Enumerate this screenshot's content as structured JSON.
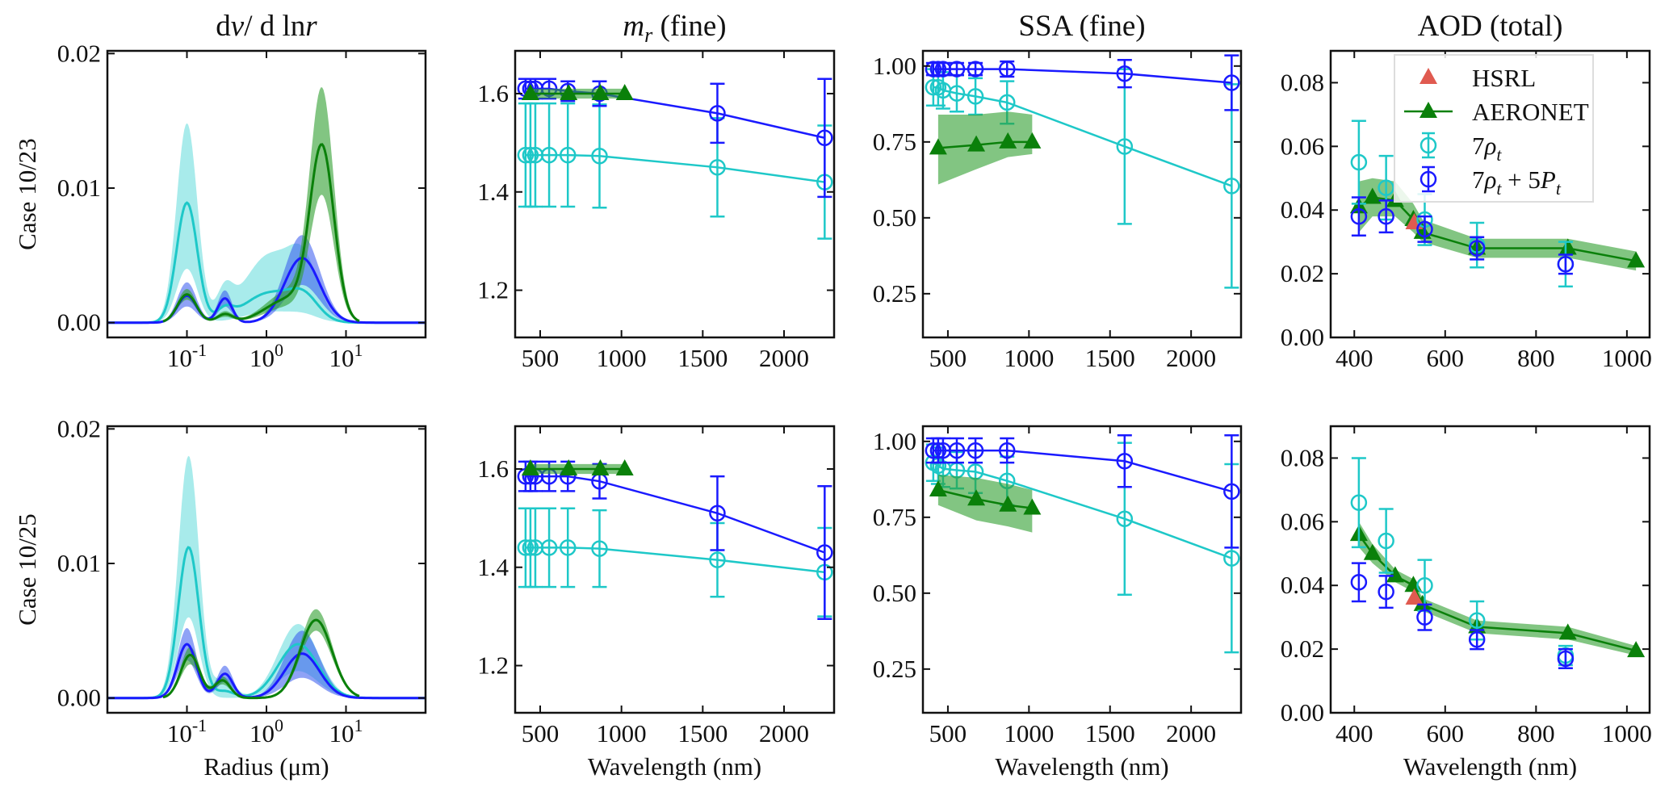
{
  "colors": {
    "fit7": "#1ec8c8",
    "fit7band": "#3fd3d3",
    "fit12": "#1a1aff",
    "fit12band": "#3355ee",
    "aeronet": "#0a800a",
    "aeronetband": "#2e9e2e",
    "hsrl": "#e05a50",
    "axis": "#111111"
  },
  "legend": [
    {
      "key": "hsrl",
      "parts": [
        [
          "HSRL",
          ""
        ]
      ]
    },
    {
      "key": "aeronet",
      "parts": [
        [
          "AERONET",
          ""
        ]
      ]
    },
    {
      "key": "fit7",
      "parts": [
        [
          "7",
          ""
        ],
        [
          "ρ",
          "i"
        ],
        [
          "t",
          "sub"
        ]
      ]
    },
    {
      "key": "fit12",
      "parts": [
        [
          "7",
          ""
        ],
        [
          "ρ",
          "i"
        ],
        [
          "t",
          "sub"
        ],
        [
          " + 5",
          ""
        ],
        [
          "P",
          "i"
        ],
        [
          "t",
          "sub"
        ]
      ]
    }
  ],
  "row_labels": [
    "Case 10/23",
    "Case 10/25"
  ],
  "col_titles": [
    [
      [
        "d",
        ""
      ],
      [
        "v",
        "i"
      ],
      [
        "/ d ln",
        ""
      ],
      [
        "r",
        "i"
      ]
    ],
    [
      [
        "m",
        "i"
      ],
      [
        "r",
        "sub"
      ],
      [
        "  (fine)",
        ""
      ]
    ],
    [
      [
        "SSA (fine)",
        ""
      ]
    ],
    [
      [
        "AOD (total)",
        ""
      ]
    ]
  ],
  "xlabels": [
    "Radius (μm)",
    "Wavelength (nm)",
    "Wavelength (nm)",
    "Wavelength (nm)"
  ],
  "chart_data": [
    {
      "type": "area",
      "row": 0,
      "col": 0,
      "xscale": "log",
      "xlim": [
        0.01,
        100
      ],
      "ylim": [
        -0.0011,
        0.0202
      ],
      "xticks": [
        0.1,
        1,
        10
      ],
      "xtick_labels": [
        [
          "10",
          "-1"
        ],
        [
          "10",
          "0"
        ],
        [
          "10",
          "1"
        ]
      ],
      "yticks": [
        0,
        0.01,
        0.02
      ],
      "ytick_labels": [
        "0.00",
        "0.01",
        "0.02"
      ],
      "note": "lognormal modes: [radius_um, mean, lower, upper, width_log10]",
      "series": [
        {
          "key": "fit7",
          "range": [
            0.01,
            100
          ],
          "modes": [
            [
              0.1,
              0.0089,
              0.004,
              0.0148,
              0.13
            ],
            [
              0.3,
              0.0008,
              0,
              0.002,
              0.1
            ],
            [
              1.1,
              0.0022,
              0.0008,
              0.005,
              0.32
            ],
            [
              3,
              0.0015,
              0.0004,
              0.0035,
              0.18
            ]
          ]
        },
        {
          "key": "fit12",
          "range": [
            0.01,
            100
          ],
          "modes": [
            [
              0.1,
              0.002,
              0.0012,
              0.003,
              0.12
            ],
            [
              0.3,
              0.0018,
              0.0012,
              0.0024,
              0.09
            ],
            [
              2.8,
              0.0048,
              0.0028,
              0.0065,
              0.22
            ]
          ]
        },
        {
          "key": "aeronet",
          "range": [
            0.05,
            15
          ],
          "modes": [
            [
              0.1,
              0.0021,
              0.0017,
              0.0025,
              0.12
            ],
            [
              0.3,
              0.0006,
              0.0004,
              0.0008,
              0.1
            ],
            [
              2,
              0.0018,
              0.0012,
              0.0024,
              0.3
            ],
            [
              5,
              0.0125,
              0.009,
              0.0165,
              0.15
            ]
          ]
        }
      ]
    },
    {
      "type": "line",
      "row": 0,
      "col": 1,
      "xlim": [
        346,
        2308
      ],
      "ylim": [
        1.104,
        1.687
      ],
      "xticks": [
        500,
        1000,
        1500,
        2000
      ],
      "xtick_labels": [
        "500",
        "1000",
        "1500",
        "2000"
      ],
      "yticks": [
        1.2,
        1.4,
        1.6
      ],
      "ytick_labels": [
        "1.2",
        "1.4",
        "1.6"
      ],
      "series": [
        {
          "key": "fit7",
          "x": [
            410,
            440,
            470,
            555,
            670,
            865,
            1590,
            2250
          ],
          "y": [
            1.475,
            1.475,
            1.475,
            1.475,
            1.475,
            1.473,
            1.45,
            1.42
          ],
          "err": [
            0.105,
            0.105,
            0.105,
            0.105,
            0.105,
            0.105,
            0.1,
            0.115
          ]
        },
        {
          "key": "fit12",
          "x": [
            410,
            440,
            470,
            555,
            670,
            865,
            1590,
            2250
          ],
          "y": [
            1.61,
            1.61,
            1.61,
            1.61,
            1.605,
            1.6,
            1.56,
            1.51
          ],
          "err": [
            0.02,
            0.02,
            0.02,
            0.02,
            0.02,
            0.025,
            0.06,
            0.12
          ]
        },
        {
          "key": "aeronet",
          "x": [
            440,
            675,
            870,
            1020
          ],
          "y": [
            1.6,
            1.6,
            1.6,
            1.6
          ],
          "lo": [
            1.59,
            1.59,
            1.59,
            1.59
          ],
          "hi": [
            1.61,
            1.61,
            1.61,
            1.61
          ]
        }
      ]
    },
    {
      "type": "line",
      "row": 0,
      "col": 2,
      "xlim": [
        346,
        2308
      ],
      "ylim": [
        0.106,
        1.05
      ],
      "xticks": [
        500,
        1000,
        1500,
        2000
      ],
      "xtick_labels": [
        "500",
        "1000",
        "1500",
        "2000"
      ],
      "yticks": [
        0.25,
        0.5,
        0.75,
        1.0
      ],
      "ytick_labels": [
        "0.25",
        "0.50",
        "0.75",
        "1.00"
      ],
      "series": [
        {
          "key": "fit7",
          "x": [
            410,
            440,
            470,
            555,
            670,
            865,
            1590,
            2250
          ],
          "y": [
            0.93,
            0.93,
            0.92,
            0.91,
            0.9,
            0.88,
            0.735,
            0.605
          ],
          "err": [
            0.06,
            0.06,
            0.06,
            0.06,
            0.06,
            0.07,
            0.255,
            0.335
          ]
        },
        {
          "key": "fit12",
          "x": [
            410,
            440,
            470,
            555,
            670,
            865,
            1590,
            2250
          ],
          "y": [
            0.99,
            0.99,
            0.99,
            0.99,
            0.99,
            0.99,
            0.975,
            0.945
          ],
          "err": [
            0.02,
            0.02,
            0.02,
            0.02,
            0.02,
            0.025,
            0.045,
            0.09
          ]
        },
        {
          "key": "aeronet",
          "x": [
            440,
            675,
            870,
            1020
          ],
          "y": [
            0.73,
            0.74,
            0.75,
            0.75
          ],
          "lo": [
            0.61,
            0.66,
            0.7,
            0.71
          ],
          "hi": [
            0.84,
            0.84,
            0.85,
            0.84
          ]
        }
      ]
    },
    {
      "type": "line",
      "row": 0,
      "col": 3,
      "xlim": [
        348,
        1050
      ],
      "ylim": [
        0,
        0.09
      ],
      "xticks": [
        400,
        600,
        800,
        1000
      ],
      "xtick_labels": [
        "400",
        "600",
        "800",
        "1000"
      ],
      "yticks": [
        0,
        0.02,
        0.04,
        0.06,
        0.08
      ],
      "ytick_labels": [
        "0.00",
        "0.02",
        "0.04",
        "0.06",
        "0.08"
      ],
      "legend": "top-right",
      "series": [
        {
          "key": "aeronet",
          "x": [
            410,
            440,
            490,
            530,
            550,
            670,
            870,
            1020
          ],
          "y": [
            0.041,
            0.044,
            0.043,
            0.037,
            0.033,
            0.028,
            0.028,
            0.024
          ],
          "lo": [
            0.033,
            0.038,
            0.038,
            0.033,
            0.03,
            0.025,
            0.025,
            0.021
          ],
          "hi": [
            0.049,
            0.05,
            0.049,
            0.042,
            0.037,
            0.031,
            0.031,
            0.027
          ]
        },
        {
          "key": "hsrl",
          "x": [
            532
          ],
          "y": [
            0.036
          ]
        },
        {
          "key": "fit7",
          "x": [
            410,
            470,
            555,
            670,
            865
          ],
          "y": [
            0.055,
            0.047,
            0.037,
            0.029,
            0.023
          ],
          "err": [
            0.013,
            0.01,
            0.008,
            0.007,
            0.007
          ],
          "noline": true
        },
        {
          "key": "fit12",
          "x": [
            410,
            470,
            555,
            670,
            865
          ],
          "y": [
            0.038,
            0.038,
            0.034,
            0.028,
            0.023
          ],
          "err": [
            0.006,
            0.005,
            0.004,
            0.0035,
            0.003
          ],
          "noline": true
        }
      ]
    },
    {
      "type": "area",
      "row": 1,
      "col": 0,
      "xscale": "log",
      "xlim": [
        0.01,
        100
      ],
      "ylim": [
        -0.0011,
        0.0202
      ],
      "xticks": [
        0.1,
        1,
        10
      ],
      "xtick_labels": [
        [
          "10",
          "-1"
        ],
        [
          "10",
          "0"
        ],
        [
          "10",
          "1"
        ]
      ],
      "yticks": [
        0,
        0.01,
        0.02
      ],
      "ytick_labels": [
        "0.00",
        "0.01",
        "0.02"
      ],
      "series": [
        {
          "key": "fit7",
          "range": [
            0.01,
            100
          ],
          "modes": [
            [
              0.105,
              0.0112,
              0.006,
              0.018,
              0.13
            ],
            [
              0.3,
              0.0005,
              0,
              0.0015,
              0.12
            ],
            [
              2.5,
              0.004,
              0.002,
              0.0055,
              0.25
            ]
          ]
        },
        {
          "key": "fit12",
          "range": [
            0.01,
            100
          ],
          "modes": [
            [
              0.1,
              0.004,
              0.0028,
              0.0052,
              0.12
            ],
            [
              0.3,
              0.0018,
              0.0012,
              0.0024,
              0.1
            ],
            [
              2.8,
              0.0033,
              0.0015,
              0.005,
              0.22
            ]
          ]
        },
        {
          "key": "aeronet",
          "range": [
            0.05,
            15
          ],
          "modes": [
            [
              0.11,
              0.0032,
              0.0025,
              0.0038,
              0.12
            ],
            [
              0.28,
              0.0013,
              0.001,
              0.0016,
              0.1
            ],
            [
              4.2,
              0.0058,
              0.005,
              0.0066,
              0.2
            ]
          ]
        }
      ]
    },
    {
      "type": "line",
      "row": 1,
      "col": 1,
      "xlim": [
        346,
        2308
      ],
      "ylim": [
        1.104,
        1.687
      ],
      "xticks": [
        500,
        1000,
        1500,
        2000
      ],
      "xtick_labels": [
        "500",
        "1000",
        "1500",
        "2000"
      ],
      "yticks": [
        1.2,
        1.4,
        1.6
      ],
      "ytick_labels": [
        "1.2",
        "1.4",
        "1.6"
      ],
      "series": [
        {
          "key": "fit7",
          "x": [
            410,
            440,
            470,
            555,
            670,
            865,
            1590,
            2250
          ],
          "y": [
            1.44,
            1.44,
            1.44,
            1.44,
            1.44,
            1.438,
            1.415,
            1.39
          ],
          "err": [
            0.08,
            0.08,
            0.08,
            0.08,
            0.08,
            0.078,
            0.075,
            0.09
          ]
        },
        {
          "key": "fit12",
          "x": [
            410,
            440,
            470,
            555,
            670,
            865,
            1590,
            2250
          ],
          "y": [
            1.585,
            1.585,
            1.585,
            1.585,
            1.585,
            1.575,
            1.51,
            1.43
          ],
          "err": [
            0.03,
            0.03,
            0.03,
            0.03,
            0.03,
            0.035,
            0.075,
            0.135
          ]
        },
        {
          "key": "aeronet",
          "x": [
            440,
            675,
            870,
            1020
          ],
          "y": [
            1.6,
            1.6,
            1.6,
            1.6
          ],
          "lo": [
            1.59,
            1.59,
            1.59,
            1.59
          ],
          "hi": [
            1.61,
            1.61,
            1.61,
            1.61
          ]
        }
      ]
    },
    {
      "type": "line",
      "row": 1,
      "col": 2,
      "xlim": [
        346,
        2308
      ],
      "ylim": [
        0.106,
        1.05
      ],
      "xticks": [
        500,
        1000,
        1500,
        2000
      ],
      "xtick_labels": [
        "500",
        "1000",
        "1500",
        "2000"
      ],
      "yticks": [
        0.25,
        0.5,
        0.75,
        1.0
      ],
      "ytick_labels": [
        "0.25",
        "0.50",
        "0.75",
        "1.00"
      ],
      "series": [
        {
          "key": "fit7",
          "x": [
            410,
            440,
            470,
            555,
            670,
            865,
            1590,
            2250
          ],
          "y": [
            0.93,
            0.92,
            0.91,
            0.905,
            0.9,
            0.87,
            0.745,
            0.615
          ],
          "err": [
            0.06,
            0.06,
            0.06,
            0.06,
            0.07,
            0.08,
            0.25,
            0.31
          ]
        },
        {
          "key": "fit12",
          "x": [
            410,
            440,
            470,
            555,
            670,
            865,
            1590,
            2250
          ],
          "y": [
            0.97,
            0.97,
            0.97,
            0.97,
            0.97,
            0.97,
            0.935,
            0.835
          ],
          "err": [
            0.04,
            0.04,
            0.04,
            0.04,
            0.04,
            0.04,
            0.085,
            0.185
          ]
        },
        {
          "key": "aeronet",
          "x": [
            440,
            675,
            870,
            1020
          ],
          "y": [
            0.84,
            0.81,
            0.79,
            0.78
          ],
          "lo": [
            0.79,
            0.74,
            0.72,
            0.7
          ],
          "hi": [
            0.89,
            0.88,
            0.86,
            0.84
          ]
        }
      ]
    },
    {
      "type": "line",
      "row": 1,
      "col": 3,
      "xlim": [
        348,
        1050
      ],
      "ylim": [
        0,
        0.09
      ],
      "xticks": [
        400,
        600,
        800,
        1000
      ],
      "xtick_labels": [
        "400",
        "600",
        "800",
        "1000"
      ],
      "yticks": [
        0,
        0.02,
        0.04,
        0.06,
        0.08
      ],
      "ytick_labels": [
        "0.00",
        "0.02",
        "0.04",
        "0.06",
        "0.08"
      ],
      "series": [
        {
          "key": "aeronet",
          "x": [
            410,
            440,
            490,
            530,
            550,
            670,
            870,
            1020
          ],
          "y": [
            0.056,
            0.05,
            0.043,
            0.04,
            0.034,
            0.027,
            0.025,
            0.0195
          ],
          "lo": [
            0.052,
            0.047,
            0.041,
            0.038,
            0.032,
            0.025,
            0.023,
            0.018
          ],
          "hi": [
            0.06,
            0.053,
            0.045,
            0.042,
            0.036,
            0.029,
            0.027,
            0.021
          ]
        },
        {
          "key": "hsrl",
          "x": [
            532
          ],
          "y": [
            0.036
          ]
        },
        {
          "key": "fit7",
          "x": [
            410,
            470,
            555,
            670,
            865
          ],
          "y": [
            0.066,
            0.054,
            0.04,
            0.029,
            0.018
          ],
          "err": [
            0.014,
            0.01,
            0.008,
            0.006,
            0.003
          ],
          "noline": true
        },
        {
          "key": "fit12",
          "x": [
            410,
            470,
            555,
            670,
            865
          ],
          "y": [
            0.041,
            0.038,
            0.03,
            0.023,
            0.017
          ],
          "err": [
            0.006,
            0.005,
            0.004,
            0.003,
            0.003
          ],
          "noline": true
        }
      ]
    }
  ]
}
